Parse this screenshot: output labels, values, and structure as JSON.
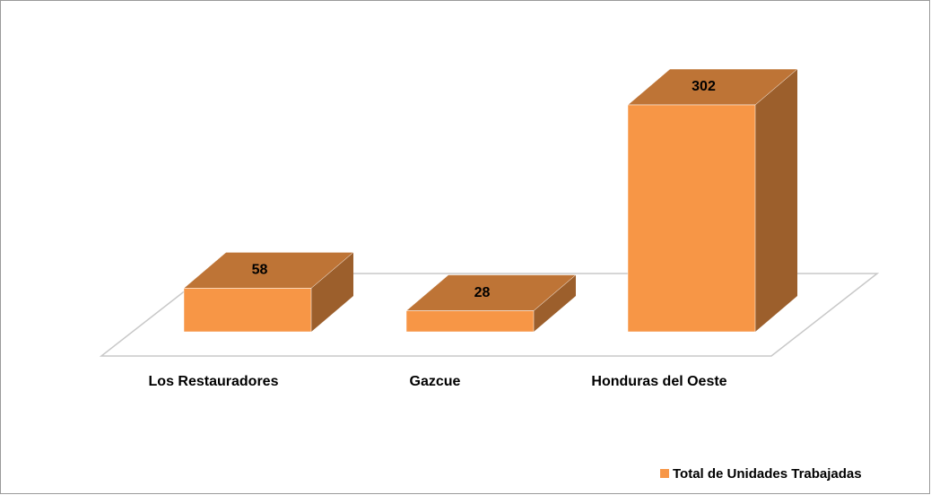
{
  "chart_data": {
    "type": "bar3d",
    "categories": [
      "Los Restauradores",
      "Gazcue",
      "Honduras del Oeste"
    ],
    "series": [
      {
        "name": "Total de Unidades Trabajadas",
        "color": "#f79646",
        "values": [
          58,
          28,
          302
        ]
      }
    ],
    "legend": "bottom-right"
  }
}
